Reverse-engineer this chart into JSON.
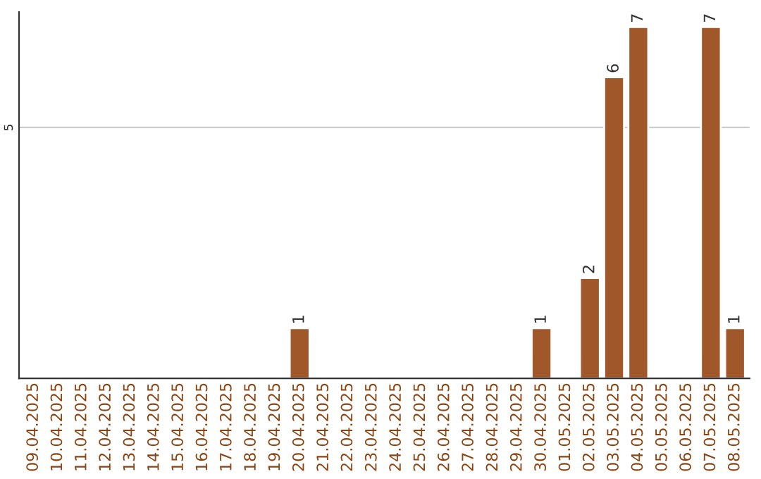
{
  "chart_data": {
    "type": "bar",
    "categories": [
      "09.04.2025",
      "10.04.2025",
      "11.04.2025",
      "12.04.2025",
      "13.04.2025",
      "14.04.2025",
      "15.04.2025",
      "16.04.2025",
      "17.04.2025",
      "18.04.2025",
      "19.04.2025",
      "20.04.2025",
      "21.04.2025",
      "22.04.2025",
      "23.04.2025",
      "24.04.2025",
      "25.04.2025",
      "26.04.2025",
      "27.04.2025",
      "28.04.2025",
      "29.04.2025",
      "30.04.2025",
      "01.05.2025",
      "02.05.2025",
      "03.05.2025",
      "04.05.2025",
      "05.05.2025",
      "06.05.2025",
      "07.05.2025",
      "08.05.2025"
    ],
    "values": [
      null,
      null,
      null,
      null,
      null,
      null,
      null,
      null,
      null,
      null,
      null,
      1,
      null,
      null,
      null,
      null,
      null,
      null,
      null,
      null,
      null,
      1,
      null,
      2,
      6,
      7,
      null,
      null,
      7,
      1
    ],
    "value_labels": [
      null,
      null,
      null,
      null,
      null,
      null,
      null,
      null,
      null,
      null,
      null,
      "1",
      null,
      null,
      null,
      null,
      null,
      null,
      null,
      null,
      null,
      "1",
      null,
      "2",
      "6",
      "7",
      null,
      null,
      "7",
      "1"
    ],
    "color": "#a0582a",
    "ylim": [
      0,
      7.3
    ],
    "yticks": [
      5
    ],
    "grid": "y"
  }
}
